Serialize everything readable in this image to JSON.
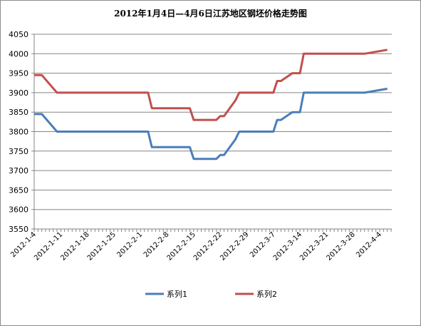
{
  "chart_data": {
    "type": "line",
    "title": "2012年1月4日—4月6日江苏地区钢坯价格走势图",
    "xlabel": "",
    "ylabel": "",
    "ylim": [
      3550,
      4050
    ],
    "yticks": [
      3550,
      3600,
      3650,
      3700,
      3750,
      3800,
      3850,
      3900,
      3950,
      4000,
      4050
    ],
    "x_tick_labels": [
      "2012-1-4",
      "2012-1-11",
      "2012-1-18",
      "2012-1-25",
      "2012-2-1",
      "2012-2-8",
      "2012-2-15",
      "2012-2-22",
      "2012-2-29",
      "2012-3-7",
      "2012-3-14",
      "2012-3-21",
      "2012-3-28",
      "2012-4-4"
    ],
    "grid": "horizontal",
    "legend_position": "bottom",
    "x": [
      "2012-1-4",
      "2012-1-6",
      "2012-1-10",
      "2012-2-3",
      "2012-2-4",
      "2012-2-14",
      "2012-2-15",
      "2012-2-21",
      "2012-2-22",
      "2012-2-23",
      "2012-2-26",
      "2012-2-27",
      "2012-3-7",
      "2012-3-8",
      "2012-3-9",
      "2012-3-12",
      "2012-3-14",
      "2012-3-15",
      "2012-3-31",
      "2012-4-6"
    ],
    "series": [
      {
        "name": "系列1",
        "color": "#4a7eba",
        "values": [
          3845,
          3845,
          3800,
          3800,
          3760,
          3760,
          3730,
          3730,
          3740,
          3740,
          3780,
          3800,
          3800,
          3830,
          3830,
          3850,
          3850,
          3900,
          3900,
          3910
        ]
      },
      {
        "name": "系列2",
        "color": "#c0504d",
        "values": [
          3945,
          3945,
          3900,
          3900,
          3860,
          3860,
          3830,
          3830,
          3840,
          3840,
          3880,
          3900,
          3900,
          3930,
          3930,
          3950,
          3950,
          4000,
          4000,
          4010
        ]
      }
    ]
  }
}
